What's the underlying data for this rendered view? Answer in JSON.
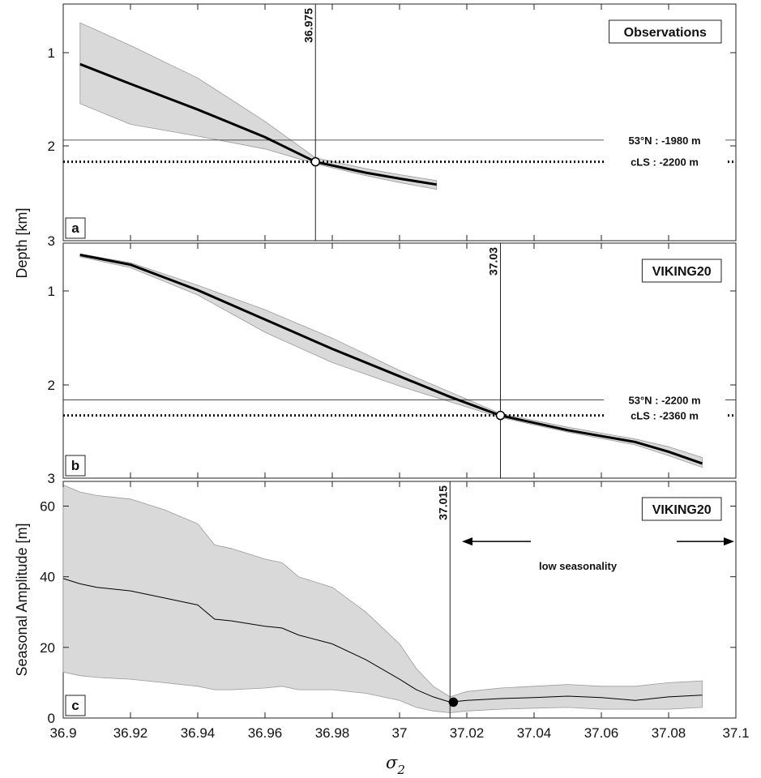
{
  "figure": {
    "ylabel_top": "Depth [km]",
    "xlabel_symbol": "σ",
    "xlabel_subscript": "2"
  },
  "chart_data": [
    {
      "type": "line",
      "panel_label": "a",
      "title": "Observations",
      "xlim": [
        36.9,
        37.1
      ],
      "ylim": [
        3,
        0.6
      ],
      "y_reversed": true,
      "yticks": [
        "1",
        "2",
        "3"
      ],
      "x": [
        36.905,
        36.92,
        36.94,
        36.96,
        36.975,
        36.99,
        37.0,
        37.011
      ],
      "series": [
        {
          "values": [
            1.21,
            1.41,
            1.67,
            1.95,
            2.2,
            2.31,
            2.37,
            2.43
          ]
        }
      ],
      "band_upper": [
        0.79,
        1.02,
        1.35,
        1.79,
        2.16,
        2.27,
        2.33,
        2.39
      ],
      "band_lower": [
        1.61,
        1.82,
        1.94,
        2.07,
        2.22,
        2.34,
        2.41,
        2.48
      ],
      "hlines": [
        {
          "y": 1.98,
          "label": "53°N : -1980 m",
          "style": "thin"
        },
        {
          "y": 2.2,
          "label": "cLS : -2200 m",
          "style": "dotted"
        }
      ],
      "vline": {
        "x": 36.975,
        "label": "36.975"
      },
      "marker": {
        "x": 36.975,
        "y": 2.2,
        "fill": "open"
      }
    },
    {
      "type": "line",
      "panel_label": "b",
      "title": "VIKING20",
      "xlim": [
        36.9,
        37.1
      ],
      "ylim": [
        3,
        0.6
      ],
      "y_reversed": true,
      "yticks": [
        "1",
        "2",
        "3"
      ],
      "x": [
        36.905,
        36.92,
        36.94,
        36.96,
        36.98,
        37.0,
        37.015,
        37.03,
        37.05,
        37.07,
        37.08,
        37.09
      ],
      "series": [
        {
          "values": [
            0.72,
            0.82,
            1.08,
            1.38,
            1.68,
            1.96,
            2.17,
            2.36,
            2.51,
            2.63,
            2.73,
            2.85
          ]
        }
      ],
      "band_upper": [
        0.71,
        0.8,
        1.03,
        1.28,
        1.57,
        1.9,
        2.12,
        2.34,
        2.48,
        2.6,
        2.68,
        2.79
      ],
      "band_lower": [
        0.74,
        0.85,
        1.13,
        1.51,
        1.82,
        2.06,
        2.22,
        2.38,
        2.53,
        2.66,
        2.77,
        2.89
      ],
      "hlines": [
        {
          "y": 2.2,
          "label": "53°N : -2200 m",
          "style": "thin"
        },
        {
          "y": 2.36,
          "label": "cLS : -2360 m",
          "style": "dotted"
        }
      ],
      "vline": {
        "x": 37.03,
        "label": "37.03"
      },
      "marker": {
        "x": 37.03,
        "y": 2.36,
        "fill": "open"
      }
    },
    {
      "type": "line",
      "panel_label": "c",
      "title": "VIKING20",
      "ylabel": "Seasonal Amplitude [m]",
      "xlim": [
        36.9,
        37.1
      ],
      "ylim": [
        0,
        67
      ],
      "yticks": [
        "0",
        "20",
        "40",
        "60"
      ],
      "xticks": [
        "36.9",
        "36.92",
        "36.94",
        "36.96",
        "36.98",
        "37",
        "37.02",
        "37.04",
        "37.06",
        "37.08",
        "37.1"
      ],
      "x": [
        36.9,
        36.905,
        36.91,
        36.92,
        36.93,
        36.94,
        36.945,
        36.95,
        36.96,
        36.965,
        36.97,
        36.98,
        36.99,
        37.0,
        37.005,
        37.01,
        37.015,
        37.02,
        37.03,
        37.04,
        37.05,
        37.06,
        37.07,
        37.08,
        37.09
      ],
      "series": [
        {
          "values": [
            39.5,
            38,
            37,
            36,
            34,
            32,
            28,
            27.5,
            26,
            25.5,
            23.5,
            21,
            16.5,
            11,
            8,
            6,
            4.5,
            5,
            5.5,
            5.8,
            6.2,
            5.8,
            5,
            6,
            6.5
          ]
        }
      ],
      "band_upper": [
        66,
        64,
        63,
        62,
        59,
        55,
        49,
        48,
        45,
        44,
        40,
        37,
        30,
        21,
        14,
        9,
        6,
        7.5,
        8.5,
        9,
        9.5,
        9,
        9,
        10,
        10.5
      ],
      "band_lower": [
        13,
        12,
        11.5,
        11,
        10,
        9,
        8,
        8,
        8.5,
        9,
        8,
        8,
        7,
        5,
        3,
        2,
        1.5,
        2,
        2.5,
        2.8,
        3,
        2.5,
        2.5,
        2.5,
        3
      ],
      "vline": {
        "x": 37.015,
        "label": "37.015"
      },
      "marker": {
        "x": 37.016,
        "y": 4.5,
        "fill": "solid"
      },
      "annotation": "low seasonality"
    }
  ]
}
